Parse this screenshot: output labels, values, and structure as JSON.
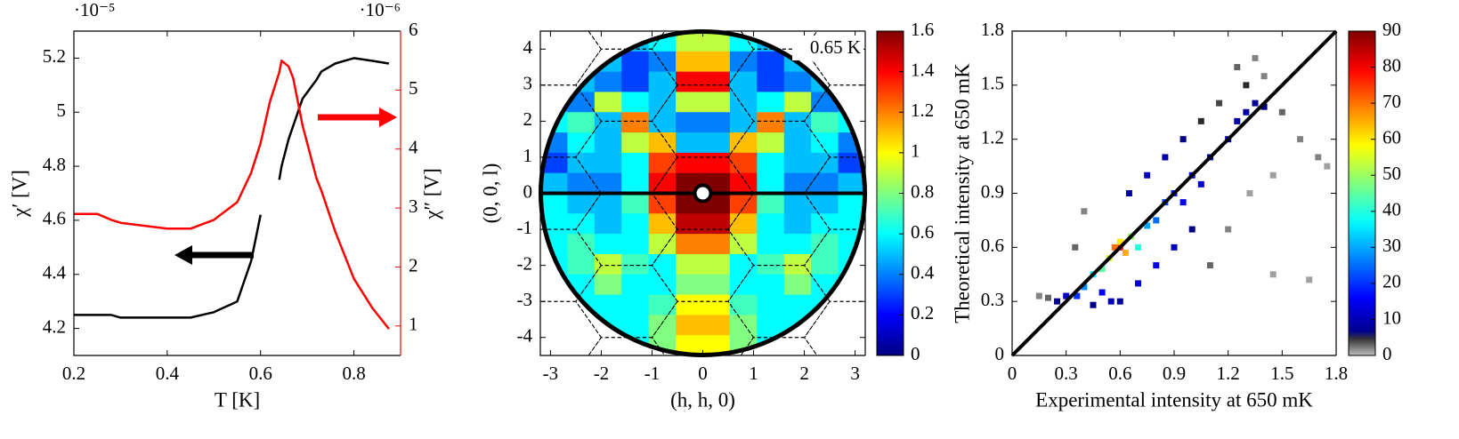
{
  "chart_data": [
    {
      "type": "line",
      "exponent_label": "·10⁻⁵",
      "y2_exponent_label": "·10⁻⁶",
      "xlabel": "T [K]",
      "ylabel": "χ′ [V]",
      "y2label": "χ″ [V]",
      "x": [
        0.2,
        0.25,
        0.28,
        0.3,
        0.35,
        0.4,
        0.45,
        0.5,
        0.55,
        0.58,
        0.6,
        0.62,
        0.64,
        0.645,
        0.66,
        0.67,
        0.69,
        0.72,
        0.73,
        0.76,
        0.8,
        0.84,
        0.875
      ],
      "xlim": [
        0.2,
        0.9
      ],
      "xticks": [
        0.2,
        0.4,
        0.6,
        0.8
      ],
      "ylim": [
        4.1,
        5.3
      ],
      "yticks": [
        4.2,
        4.4,
        4.6,
        4.8,
        5,
        5.2
      ],
      "y2lim": [
        0.5,
        6
      ],
      "y2ticks": [
        1,
        2,
        3,
        4,
        5,
        6
      ],
      "y2color": "#ff0000",
      "series": [
        {
          "color": "#000000",
          "values": [
            4.25,
            4.25,
            4.25,
            4.24,
            4.24,
            4.24,
            4.24,
            4.26,
            4.3,
            4.45,
            4.62,
            null,
            4.75,
            4.8,
            4.9,
            4.95,
            5.05,
            5.12,
            5.15,
            5.18,
            5.2,
            5.19,
            5.18
          ]
        },
        {
          "color": "#ff0000",
          "axis": "y2",
          "values": [
            2.9,
            2.9,
            2.8,
            2.75,
            2.7,
            2.65,
            2.65,
            2.8,
            3.1,
            3.6,
            4.1,
            4.8,
            5.3,
            5.5,
            5.4,
            5.2,
            4.4,
            3.5,
            3.3,
            2.6,
            1.8,
            1.3,
            0.95
          ]
        }
      ]
    },
    {
      "type": "heatmap",
      "annotation": "0.65 K",
      "xlabel": "(h, h, 0)",
      "ylabel": "(0, 0, l)",
      "xlim": [
        -3.2,
        3.2
      ],
      "xticks": [
        -3,
        -2,
        -1,
        0,
        1,
        2,
        3
      ],
      "ylim": [
        -4.5,
        4.5
      ],
      "yticks": [
        -4,
        -3,
        -2,
        -1,
        0,
        1,
        2,
        3,
        4
      ],
      "colormap": "jet",
      "clim": [
        0,
        1.6
      ],
      "cticks": [
        0,
        0.2,
        0.4,
        0.6,
        0.8,
        1,
        1.2,
        1.4,
        1.6
      ],
      "z": [
        [
          0.5,
          0.5,
          0.5,
          0.5,
          0.6,
          0.9,
          0.9,
          0.6,
          0.5,
          0.5,
          0.5,
          0.5
        ],
        [
          0.5,
          0.5,
          0.5,
          0.3,
          0.4,
          1.1,
          1.1,
          0.4,
          0.3,
          0.5,
          0.5,
          0.5
        ],
        [
          0.5,
          0.5,
          0.4,
          0.3,
          0.5,
          1.4,
          1.4,
          0.5,
          0.3,
          0.4,
          0.5,
          0.5
        ],
        [
          0.5,
          0.4,
          0.9,
          0.6,
          0.5,
          0.9,
          0.9,
          0.5,
          0.6,
          0.9,
          0.4,
          0.5
        ],
        [
          0.6,
          0.7,
          0.5,
          1.2,
          0.5,
          0.4,
          0.4,
          0.5,
          1.2,
          0.5,
          0.7,
          0.6
        ],
        [
          0.4,
          0.6,
          0.5,
          0.9,
          1.1,
          0.5,
          0.5,
          1.1,
          0.9,
          0.5,
          0.6,
          0.4
        ],
        [
          0.3,
          0.5,
          0.5,
          0.6,
          1.3,
          1.4,
          1.4,
          1.3,
          0.6,
          0.5,
          0.5,
          0.3
        ],
        [
          0.5,
          0.4,
          0.4,
          0.6,
          1.4,
          1.6,
          1.6,
          1.4,
          0.6,
          0.4,
          0.4,
          0.5
        ],
        [
          0.6,
          0.5,
          0.5,
          0.7,
          1.3,
          1.6,
          1.6,
          1.3,
          0.7,
          0.5,
          0.5,
          0.6
        ],
        [
          0.6,
          0.6,
          0.5,
          0.6,
          1.1,
          1.5,
          1.5,
          1.1,
          0.6,
          0.5,
          0.6,
          0.6
        ],
        [
          0.6,
          0.7,
          0.6,
          0.6,
          0.9,
          1.2,
          1.2,
          0.9,
          0.6,
          0.6,
          0.7,
          0.6
        ],
        [
          0.6,
          0.7,
          0.9,
          0.7,
          0.6,
          0.9,
          0.9,
          0.6,
          0.7,
          0.9,
          0.7,
          0.6
        ],
        [
          0.6,
          0.6,
          0.8,
          0.6,
          0.6,
          0.8,
          0.8,
          0.6,
          0.6,
          0.8,
          0.6,
          0.6
        ],
        [
          0.6,
          0.6,
          0.6,
          0.6,
          0.7,
          1.0,
          1.0,
          0.7,
          0.6,
          0.6,
          0.6,
          0.6
        ],
        [
          0.6,
          0.6,
          0.6,
          0.6,
          0.8,
          1.1,
          1.1,
          0.8,
          0.6,
          0.6,
          0.6,
          0.6
        ],
        [
          0.6,
          0.6,
          0.6,
          0.6,
          0.8,
          1.0,
          1.0,
          0.8,
          0.6,
          0.6,
          0.6,
          0.6
        ]
      ]
    },
    {
      "type": "hist2d",
      "xlabel": "Experimental intensity at 650 mK",
      "ylabel": "Theoretical intensity at 650 mK",
      "xlim": [
        0,
        1.8
      ],
      "xticks": [
        0,
        0.3,
        0.6,
        0.9,
        1.2,
        1.5,
        1.8
      ],
      "ylim": [
        0,
        1.8
      ],
      "yticks": [
        0,
        0.3,
        0.6,
        0.9,
        1.2,
        1.5,
        1.8
      ],
      "colormap": "gray-jet",
      "clim": [
        0,
        90
      ],
      "cticks": [
        0,
        10,
        20,
        30,
        40,
        50,
        60,
        70,
        80,
        90
      ],
      "x": [
        0.6,
        0.57,
        0.63,
        0.6,
        0.54,
        0.66,
        0.5,
        0.7,
        0.45,
        0.75,
        0.4,
        0.8,
        0.36,
        0.85,
        0.9,
        0.95,
        1.0,
        1.05,
        1.1,
        1.2,
        1.25,
        1.3,
        1.35,
        1.4,
        1.3,
        1.25,
        0.3,
        0.25,
        0.2,
        0.15,
        0.5,
        0.55,
        0.7,
        0.8,
        0.9,
        1.0,
        0.65,
        0.75,
        0.85,
        0.95,
        1.05,
        1.15,
        1.5,
        1.6,
        1.7,
        1.75,
        1.45,
        1.2,
        1.32,
        0.4,
        0.35,
        1.1,
        1.4,
        1.35,
        1.65,
        1.45,
        0.6,
        0.45
      ],
      "y": [
        0.6,
        0.6,
        0.57,
        0.63,
        0.54,
        0.66,
        0.48,
        0.6,
        0.45,
        0.72,
        0.38,
        0.75,
        0.33,
        0.85,
        0.9,
        0.85,
        1.0,
        0.95,
        1.1,
        1.2,
        1.3,
        1.35,
        1.4,
        1.38,
        1.5,
        1.6,
        0.33,
        0.3,
        0.32,
        0.33,
        0.35,
        0.3,
        0.4,
        0.5,
        0.6,
        0.7,
        0.9,
        1.0,
        1.1,
        1.2,
        1.3,
        1.4,
        1.35,
        1.2,
        1.1,
        1.05,
        0.45,
        0.7,
        0.9,
        0.8,
        0.6,
        0.5,
        1.55,
        1.65,
        0.42,
        1.0,
        0.3,
        0.28
      ],
      "values": [
        80,
        70,
        65,
        60,
        55,
        50,
        45,
        40,
        35,
        30,
        28,
        25,
        20,
        22,
        18,
        15,
        14,
        12,
        10,
        9,
        8,
        8,
        7,
        6,
        5,
        3,
        12,
        6,
        3,
        2,
        15,
        10,
        12,
        14,
        10,
        6,
        8,
        10,
        9,
        6,
        5,
        4,
        3,
        2,
        2,
        1,
        1,
        2,
        1,
        2,
        3,
        3,
        2,
        2,
        1,
        1,
        8,
        6
      ]
    }
  ]
}
